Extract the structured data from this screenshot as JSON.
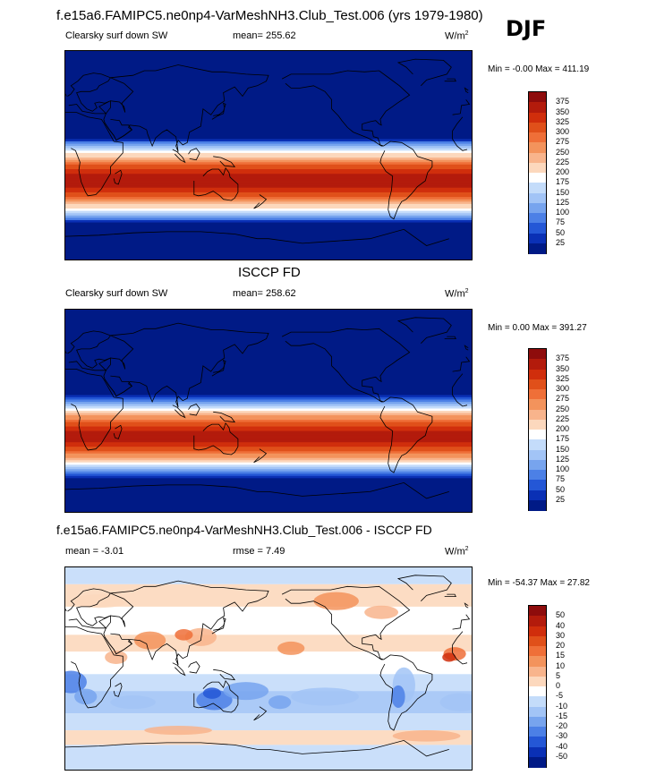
{
  "header": {
    "title": "f.e15a6.FAMIPC5.ne0np4-VarMeshNH3.Club_Test.006 (yrs 1979-1980)",
    "season": "DJF"
  },
  "panel1": {
    "field": "Clearsky surf down SW",
    "mean": "mean= 255.62",
    "units": "W/m",
    "units_exp": "2",
    "minmax": "Min =  -0.00 Max = 411.19"
  },
  "panel2": {
    "title": "ISCCP FD",
    "field": "Clearsky surf down SW",
    "mean": "mean= 258.62",
    "units": "W/m",
    "units_exp": "2",
    "minmax": "Min =   0.00 Max = 391.27"
  },
  "panel3": {
    "title": "f.e15a6.FAMIPC5.ne0np4-VarMeshNH3.Club_Test.006 - ISCCP FD",
    "mean": "mean =  -3.01",
    "rmse": "rmse =   7.49",
    "units": "W/m",
    "units_exp": "2",
    "minmax": "Min = -54.37 Max =  27.82"
  },
  "colorbar_fields": {
    "labels": [
      "375",
      "350",
      "325",
      "300",
      "275",
      "250",
      "225",
      "200",
      "175",
      "150",
      "125",
      "100",
      "75",
      "50",
      "25"
    ],
    "colors": [
      "#8e0c0c",
      "#b31b0c",
      "#d02e0c",
      "#e0501a",
      "#ef6f38",
      "#f3935c",
      "#f8b48c",
      "#fcd8bd",
      "#ffffff",
      "#c4dcfa",
      "#a2c4f6",
      "#77a4ee",
      "#4c80e6",
      "#2457d6",
      "#0a30b5",
      "#001a86"
    ]
  },
  "colorbar_diff": {
    "labels": [
      "50",
      "40",
      "30",
      "20",
      "15",
      "10",
      "5",
      "0",
      "-5",
      "-10",
      "-15",
      "-20",
      "-30",
      "-40",
      "-50"
    ],
    "colors": [
      "#8e0c0c",
      "#b31b0c",
      "#d02e0c",
      "#e0501a",
      "#ef6f38",
      "#f3935c",
      "#f8b48c",
      "#fcd8bd",
      "#ffffff",
      "#c4dcfa",
      "#a2c4f6",
      "#77a4ee",
      "#4c80e6",
      "#2457d6",
      "#0a30b5",
      "#001a86"
    ]
  },
  "chart_data": [
    {
      "type": "heatmap",
      "title": "Clearsky surf down SW",
      "levels": [
        25,
        50,
        75,
        100,
        125,
        150,
        175,
        200,
        225,
        250,
        275,
        300,
        325,
        350,
        375
      ],
      "min": -0.0,
      "max": 411.19,
      "mean": 255.62
    },
    {
      "type": "heatmap",
      "title": "ISCCP FD",
      "levels": [
        25,
        50,
        75,
        100,
        125,
        150,
        175,
        200,
        225,
        250,
        275,
        300,
        325,
        350,
        375
      ],
      "min": 0.0,
      "max": 391.27,
      "mean": 258.62
    },
    {
      "type": "heatmap",
      "title": "f.e15a6.FAMIPC5.ne0np4-VarMeshNH3.Club_Test.006 - ISCCP FD",
      "levels": [
        -50,
        -40,
        -30,
        -20,
        -15,
        -10,
        -5,
        0,
        5,
        10,
        15,
        20,
        30,
        40,
        50
      ],
      "min": -54.37,
      "max": 27.82,
      "mean": -3.01,
      "rmse": 7.49
    }
  ]
}
